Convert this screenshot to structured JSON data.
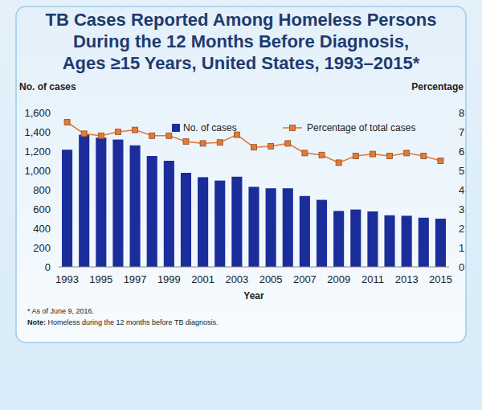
{
  "chart_data": {
    "type": "bar",
    "title": "TB Cases Reported Among Homeless Persons\nDuring the 12 Months Before Diagnosis,\nAges ≥15 Years, United States, 1993–2015*",
    "y_label": "No. of cases",
    "y2_label": "Percentage",
    "x_label": "Year",
    "footnote": "* As of June 9, 2016.",
    "note": {
      "label": "Note:",
      "text": "Homeless during the 12 months before TB diagnosis."
    },
    "categories": [
      "1993",
      null,
      "1995",
      null,
      "1997",
      null,
      "1999",
      null,
      "2001",
      null,
      "2003",
      null,
      "2005",
      null,
      "2007",
      null,
      "2009",
      null,
      "2011",
      null,
      "2013",
      null,
      "2015"
    ],
    "series": [
      {
        "name": "No. of cases",
        "type": "bar",
        "color": "#1b2d9b",
        "values": [
          1215,
          1370,
          1340,
          1320,
          1260,
          1150,
          1100,
          975,
          930,
          895,
          935,
          830,
          815,
          815,
          735,
          695,
          580,
          595,
          575,
          535,
          530,
          510,
          500
        ]
      },
      {
        "name": "Percentage of total cases",
        "type": "line",
        "color": "#e07b39",
        "marker": "square",
        "axis": "y2",
        "values": [
          7.5,
          6.9,
          6.8,
          7.0,
          7.1,
          6.8,
          6.8,
          6.5,
          6.4,
          6.45,
          6.85,
          6.2,
          6.25,
          6.4,
          5.9,
          5.8,
          5.4,
          5.75,
          5.85,
          5.75,
          5.9,
          5.75,
          5.5
        ]
      }
    ],
    "ylim": [
      0,
      1600
    ],
    "yticks": [
      0,
      200,
      400,
      600,
      800,
      {
        "value": 1000,
        "label": "1,000"
      },
      {
        "value": 1200,
        "label": "1,200"
      },
      {
        "value": 1400,
        "label": "1,400"
      },
      {
        "value": 1600,
        "label": "1,600"
      }
    ],
    "y2lim": [
      0,
      8
    ],
    "y2ticks": [
      0,
      1,
      2,
      3,
      4,
      5,
      6,
      7,
      8
    ],
    "grid": false,
    "legend": "top"
  }
}
